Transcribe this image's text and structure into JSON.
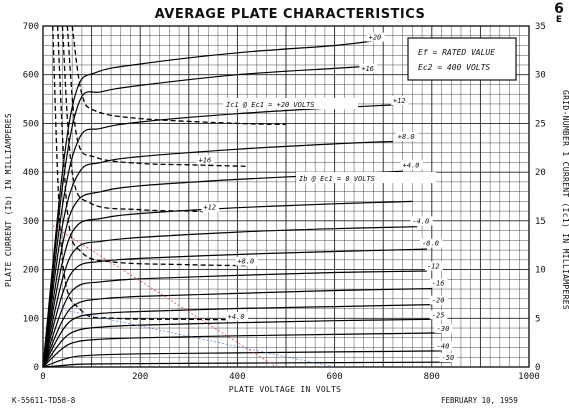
{
  "chart_data": {
    "type": "line",
    "title": "AVERAGE PLATE CHARACTERISTICS",
    "corner_label": "6",
    "corner_sublabel": "E",
    "xlabel": "PLATE VOLTAGE IN VOLTS",
    "ylabel_left": "PLATE CURRENT (Ib) IN MILLIAMPERES",
    "ylabel_right": "GRID-NUMBER 1 CURRENT (Ic1) IN MILLIAMPERES",
    "xlim": [
      0,
      1000
    ],
    "ylim_left": [
      0,
      700
    ],
    "ylim_right": [
      0,
      35
    ],
    "x_ticks": [
      0,
      200,
      400,
      600,
      800,
      1000
    ],
    "y_ticks_left": [
      0,
      100,
      200,
      300,
      400,
      500,
      600,
      700
    ],
    "y_ticks_right": [
      0,
      5,
      10,
      15,
      20,
      25,
      30,
      35
    ],
    "grid": true,
    "legend_box": [
      "Ef = RATED VALUE",
      "Ec2 = 400 VOLTS"
    ],
    "footer_left": "K-55611-TD58-8",
    "footer_right": "FEBRUARY 10, 1959",
    "annotations": [
      "Ic1 @ Ec1 = +20 VOLTS",
      "Ib @ Ec1 = 0 VOLTS"
    ],
    "plate_series": [
      {
        "name": "+20",
        "values": [
          [
            0,
            0
          ],
          [
            40,
            400
          ],
          [
            70,
            570
          ],
          [
            110,
            605
          ],
          [
            200,
            622
          ],
          [
            400,
            645
          ],
          [
            600,
            660
          ],
          [
            700,
            672
          ]
        ]
      },
      {
        "name": "+16",
        "values": [
          [
            0,
            0
          ],
          [
            40,
            370
          ],
          [
            75,
            545
          ],
          [
            120,
            565
          ],
          [
            200,
            578
          ],
          [
            400,
            600
          ],
          [
            600,
            613
          ],
          [
            680,
            618
          ]
        ]
      },
      {
        "name": "+12",
        "values": [
          [
            0,
            0
          ],
          [
            40,
            330
          ],
          [
            75,
            470
          ],
          [
            120,
            490
          ],
          [
            200,
            503
          ],
          [
            400,
            520
          ],
          [
            600,
            532
          ],
          [
            720,
            538
          ]
        ]
      },
      {
        "name": "+8.0",
        "values": [
          [
            0,
            0
          ],
          [
            40,
            290
          ],
          [
            75,
            400
          ],
          [
            120,
            420
          ],
          [
            200,
            432
          ],
          [
            400,
            447
          ],
          [
            600,
            458
          ],
          [
            720,
            463
          ]
        ]
      },
      {
        "name": "+4.0",
        "values": [
          [
            0,
            0
          ],
          [
            40,
            250
          ],
          [
            70,
            340
          ],
          [
            120,
            360
          ],
          [
            200,
            372
          ],
          [
            400,
            385
          ],
          [
            600,
            395
          ],
          [
            740,
            402
          ]
        ]
      },
      {
        "name": "0",
        "values": [
          [
            0,
            0
          ],
          [
            40,
            215
          ],
          [
            70,
            290
          ],
          [
            120,
            305
          ],
          [
            200,
            315
          ],
          [
            400,
            327
          ],
          [
            600,
            335
          ],
          [
            760,
            340
          ]
        ]
      },
      {
        "name": "-4.0",
        "values": [
          [
            0,
            0
          ],
          [
            40,
            180
          ],
          [
            70,
            245
          ],
          [
            120,
            258
          ],
          [
            200,
            266
          ],
          [
            400,
            277
          ],
          [
            600,
            284
          ],
          [
            770,
            288
          ]
        ]
      },
      {
        "name": "-8.0",
        "values": [
          [
            0,
            0
          ],
          [
            40,
            150
          ],
          [
            70,
            205
          ],
          [
            120,
            217
          ],
          [
            200,
            223
          ],
          [
            400,
            231
          ],
          [
            600,
            237
          ],
          [
            790,
            242
          ]
        ]
      },
      {
        "name": "-12",
        "values": [
          [
            0,
            0
          ],
          [
            40,
            120
          ],
          [
            70,
            165
          ],
          [
            120,
            175
          ],
          [
            200,
            181
          ],
          [
            400,
            188
          ],
          [
            600,
            194
          ],
          [
            790,
            197
          ]
        ]
      },
      {
        "name": "-16",
        "values": [
          [
            0,
            0
          ],
          [
            40,
            95
          ],
          [
            70,
            130
          ],
          [
            120,
            140
          ],
          [
            200,
            145
          ],
          [
            400,
            151
          ],
          [
            600,
            157
          ],
          [
            800,
            161
          ]
        ]
      },
      {
        "name": "-20",
        "values": [
          [
            0,
            0
          ],
          [
            40,
            75
          ],
          [
            70,
            102
          ],
          [
            120,
            110
          ],
          [
            200,
            114
          ],
          [
            400,
            120
          ],
          [
            600,
            124
          ],
          [
            800,
            128
          ]
        ]
      },
      {
        "name": "-25",
        "values": [
          [
            0,
            0
          ],
          [
            40,
            55
          ],
          [
            70,
            75
          ],
          [
            120,
            82
          ],
          [
            200,
            86
          ],
          [
            400,
            91
          ],
          [
            600,
            95
          ],
          [
            800,
            98
          ]
        ]
      },
      {
        "name": "-30",
        "values": [
          [
            0,
            0
          ],
          [
            40,
            38
          ],
          [
            70,
            52
          ],
          [
            120,
            57
          ],
          [
            200,
            60
          ],
          [
            400,
            64
          ],
          [
            600,
            67
          ],
          [
            820,
            70
          ]
        ]
      },
      {
        "name": "-40",
        "values": [
          [
            0,
            0
          ],
          [
            40,
            15
          ],
          [
            70,
            22
          ],
          [
            120,
            25
          ],
          [
            200,
            27
          ],
          [
            400,
            29
          ],
          [
            600,
            31
          ],
          [
            820,
            33
          ]
        ]
      },
      {
        "name": "-50",
        "values": [
          [
            0,
            0
          ],
          [
            40,
            3
          ],
          [
            80,
            6
          ],
          [
            200,
            7
          ],
          [
            400,
            8
          ],
          [
            600,
            9
          ],
          [
            840,
            10
          ]
        ]
      }
    ],
    "grid_current_series": [
      {
        "name": "+20",
        "values": [
          [
            60,
            700
          ],
          [
            80,
            560
          ],
          [
            110,
            525
          ],
          [
            200,
            510
          ],
          [
            400,
            500
          ],
          [
            500,
            498
          ]
        ]
      },
      {
        "name": "+16",
        "values": [
          [
            50,
            700
          ],
          [
            70,
            470
          ],
          [
            110,
            430
          ],
          [
            200,
            418
          ],
          [
            300,
            415
          ],
          [
            420,
            412
          ]
        ]
      },
      {
        "name": "+12",
        "values": [
          [
            40,
            700
          ],
          [
            60,
            400
          ],
          [
            100,
            335
          ],
          [
            200,
            323
          ],
          [
            300,
            320
          ],
          [
            330,
            319
          ]
        ]
      },
      {
        "name": "+8.0",
        "values": [
          [
            30,
            700
          ],
          [
            50,
            320
          ],
          [
            80,
            235
          ],
          [
            150,
            215
          ],
          [
            300,
            210
          ],
          [
            420,
            208
          ]
        ]
      },
      {
        "name": "+4.0",
        "values": [
          [
            20,
            700
          ],
          [
            40,
            220
          ],
          [
            80,
            115
          ],
          [
            150,
            100
          ],
          [
            300,
            98
          ],
          [
            380,
            97
          ]
        ]
      }
    ],
    "label_positions": {
      "+20": [
        670,
        672
      ],
      "+16": [
        655,
        608
      ],
      "+12": [
        720,
        542
      ],
      "+8.0": [
        730,
        468
      ],
      "+4.0": [
        740,
        410
      ],
      "0 VOLTS": [
        750,
        340
      ],
      "-4.0": [
        760,
        295
      ],
      "-8.0": [
        780,
        249
      ],
      "-12": [
        790,
        202
      ],
      "-16": [
        800,
        167
      ],
      "-20": [
        800,
        132
      ],
      "-25": [
        800,
        102
      ],
      "-30": [
        810,
        74
      ],
      "-40": [
        810,
        38
      ],
      "-50": [
        820,
        14
      ],
      "g+16": [
        320,
        420
      ],
      "g+12": [
        330,
        323
      ],
      "g+8.0": [
        400,
        212
      ],
      "g+4.0": [
        380,
        99
      ]
    }
  }
}
